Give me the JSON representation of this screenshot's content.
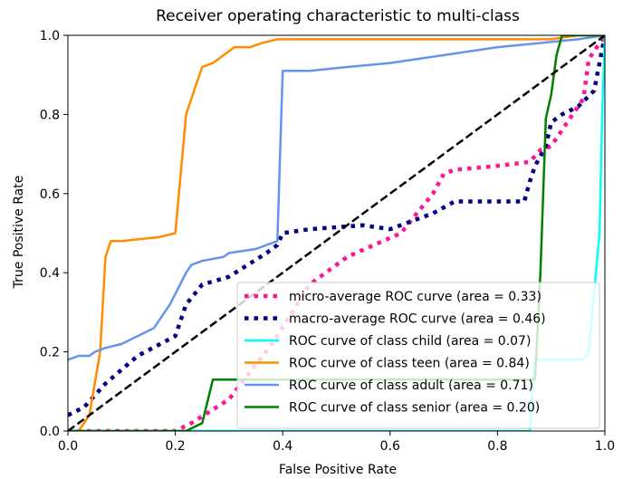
{
  "chart_data": {
    "type": "line",
    "title": "Receiver operating characteristic to multi-class",
    "xlabel": "False Positive Rate",
    "ylabel": "True Positive Rate",
    "xlim": [
      0.0,
      1.0
    ],
    "ylim": [
      0.0,
      1.0
    ],
    "xticks": [
      "0.0",
      "0.2",
      "0.4",
      "0.6",
      "0.8",
      "1.0"
    ],
    "yticks": [
      "0.0",
      "0.2",
      "0.4",
      "0.6",
      "0.8",
      "1.0"
    ],
    "grid": false,
    "legend_position": "lower-right",
    "series": [
      {
        "name": "micro-average ROC curve (area = 0.33)",
        "color": "#ff1493",
        "style": "dotted-thick",
        "x": [
          0.0,
          0.2,
          0.23,
          0.3,
          0.38,
          0.45,
          0.52,
          0.57,
          0.62,
          0.65,
          0.68,
          0.7,
          0.72,
          0.8,
          0.86,
          0.88,
          0.9,
          0.94,
          0.96,
          0.97,
          1.0
        ],
        "y": [
          0.0,
          0.0,
          0.02,
          0.08,
          0.22,
          0.37,
          0.44,
          0.47,
          0.5,
          0.55,
          0.6,
          0.65,
          0.66,
          0.67,
          0.68,
          0.71,
          0.72,
          0.8,
          0.84,
          0.94,
          1.0
        ]
      },
      {
        "name": "macro-average ROC curve (area = 0.46)",
        "color": "#000080",
        "style": "dotted-thick",
        "x": [
          0.0,
          0.03,
          0.07,
          0.13,
          0.2,
          0.22,
          0.25,
          0.3,
          0.37,
          0.39,
          0.4,
          0.45,
          0.55,
          0.6,
          0.68,
          0.72,
          0.75,
          0.85,
          0.86,
          0.87,
          0.89,
          0.9,
          0.92,
          0.95,
          0.98,
          1.0
        ],
        "y": [
          0.04,
          0.06,
          0.12,
          0.19,
          0.24,
          0.32,
          0.37,
          0.39,
          0.45,
          0.47,
          0.5,
          0.51,
          0.52,
          0.51,
          0.55,
          0.58,
          0.58,
          0.58,
          0.63,
          0.67,
          0.72,
          0.78,
          0.8,
          0.82,
          0.86,
          1.0
        ]
      },
      {
        "name": "ROC curve of class child (area = 0.07)",
        "color": "#00ffff",
        "style": "solid",
        "x": [
          0.0,
          0.45,
          0.46,
          0.86,
          0.87,
          0.96,
          0.97,
          0.98,
          0.99,
          0.995,
          1.0
        ],
        "y": [
          0.0,
          0.0,
          0.0,
          0.0,
          0.18,
          0.18,
          0.2,
          0.35,
          0.5,
          0.8,
          1.0
        ]
      },
      {
        "name": "ROC curve of class teen (area = 0.84)",
        "color": "#ff8c00",
        "style": "solid",
        "x": [
          0.0,
          0.02,
          0.04,
          0.06,
          0.07,
          0.08,
          0.1,
          0.17,
          0.2,
          0.22,
          0.23,
          0.24,
          0.25,
          0.27,
          0.29,
          0.3,
          0.31,
          0.34,
          0.36,
          0.39,
          0.41,
          0.5,
          0.9,
          0.95,
          1.0
        ],
        "y": [
          0.0,
          0.0,
          0.04,
          0.2,
          0.44,
          0.48,
          0.48,
          0.49,
          0.5,
          0.8,
          0.84,
          0.88,
          0.92,
          0.93,
          0.95,
          0.96,
          0.97,
          0.97,
          0.98,
          0.99,
          0.99,
          0.99,
          0.99,
          1.0,
          1.0
        ]
      },
      {
        "name": "ROC curve of class adult (area = 0.71)",
        "color": "#6495ed",
        "style": "solid",
        "x": [
          0.0,
          0.02,
          0.04,
          0.05,
          0.07,
          0.1,
          0.16,
          0.19,
          0.22,
          0.23,
          0.25,
          0.29,
          0.3,
          0.35,
          0.39,
          0.4,
          0.45,
          0.52,
          0.6,
          0.7,
          0.8,
          0.95,
          1.0
        ],
        "y": [
          0.18,
          0.19,
          0.19,
          0.2,
          0.21,
          0.22,
          0.26,
          0.32,
          0.4,
          0.42,
          0.43,
          0.44,
          0.45,
          0.46,
          0.48,
          0.91,
          0.91,
          0.92,
          0.93,
          0.95,
          0.97,
          0.99,
          1.0
        ]
      },
      {
        "name": "ROC curve of class senior (area = 0.20)",
        "color": "#008000",
        "style": "solid",
        "x": [
          0.0,
          0.22,
          0.25,
          0.27,
          0.4,
          0.55,
          0.7,
          0.82,
          0.83,
          0.87,
          0.88,
          0.89,
          0.9,
          0.91,
          0.92,
          1.0
        ],
        "y": [
          0.0,
          0.0,
          0.02,
          0.13,
          0.13,
          0.13,
          0.13,
          0.13,
          0.13,
          0.13,
          0.4,
          0.79,
          0.85,
          0.95,
          1.0,
          1.0
        ]
      },
      {
        "name": "",
        "color": "#000000",
        "style": "dashed",
        "x": [
          0.0,
          1.0
        ],
        "y": [
          0.0,
          1.0
        ]
      }
    ]
  }
}
